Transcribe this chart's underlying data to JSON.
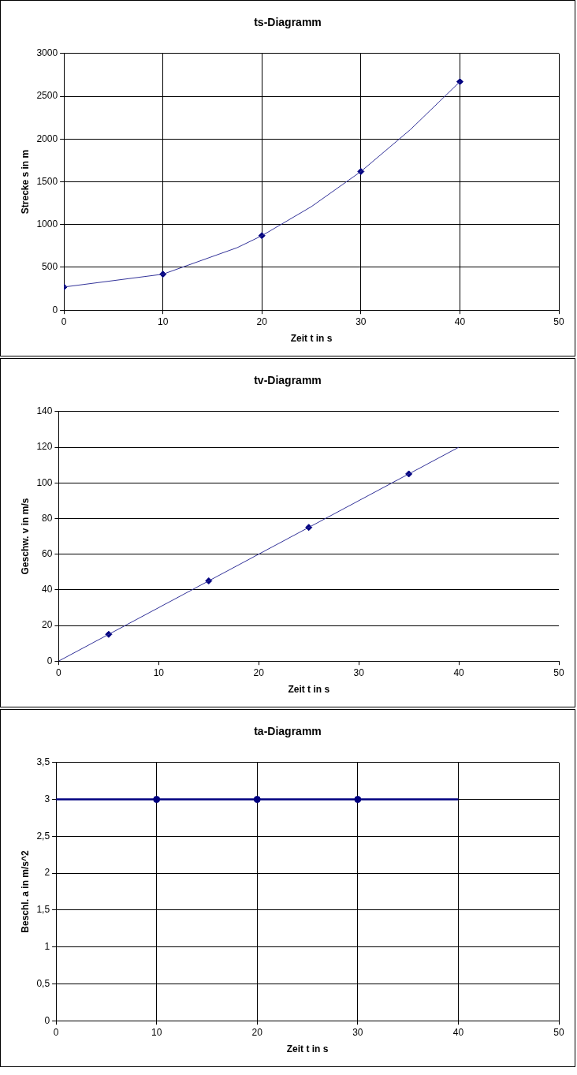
{
  "chart_data": [
    {
      "type": "line",
      "title": "ts-Diagramm",
      "xlabel": "Zeit t in s",
      "ylabel": "Strecke s in m",
      "xlim": [
        0,
        50
      ],
      "xticks": [
        0,
        10,
        20,
        30,
        40,
        50
      ],
      "ylim": [
        0,
        3000
      ],
      "yticks": [
        0,
        500,
        1000,
        1500,
        2000,
        2500,
        3000
      ],
      "grid": true,
      "legend": false,
      "series": [
        {
          "type": "line",
          "color": "#333399",
          "x": [
            0,
            10,
            17.5,
            20,
            25,
            30,
            35,
            40
          ],
          "values": [
            270,
            420,
            730,
            870,
            1210,
            1620,
            2110,
            2670
          ]
        },
        {
          "type": "scatter",
          "marker": "diamond",
          "color": "#000080",
          "x": [
            0,
            10,
            20,
            30,
            40
          ],
          "values": [
            270,
            420,
            870,
            1620,
            2670
          ]
        }
      ]
    },
    {
      "type": "line",
      "title": "tv-Diagramm",
      "xlabel": "Zeit t in s",
      "ylabel": "Geschw. v in m/s",
      "xlim": [
        0,
        50
      ],
      "xticks": [
        0,
        10,
        20,
        30,
        40,
        50
      ],
      "ylim": [
        0,
        140
      ],
      "yticks": [
        0,
        20,
        40,
        60,
        80,
        100,
        120,
        140
      ],
      "grid": "y",
      "legend": false,
      "series": [
        {
          "type": "line",
          "color": "#333399",
          "x": [
            0,
            40
          ],
          "values": [
            0,
            120
          ]
        },
        {
          "type": "scatter",
          "marker": "diamond",
          "color": "#000080",
          "x": [
            5,
            15,
            25,
            35
          ],
          "values": [
            15,
            45,
            75,
            105
          ]
        }
      ]
    },
    {
      "type": "line",
      "title": "ta-Diagramm",
      "xlabel": "Zeit t in s",
      "ylabel": "Beschl. a in m/s^2",
      "xlim": [
        0,
        50
      ],
      "xticks": [
        0,
        10,
        20,
        30,
        40,
        50
      ],
      "ylim": [
        0,
        3.5
      ],
      "yticks": [
        0,
        {
          "value": 0.5,
          "label": "0,5"
        },
        1,
        {
          "value": 1.5,
          "label": "1,5"
        },
        2,
        {
          "value": 2.5,
          "label": "2,5"
        },
        3,
        {
          "value": 3.5,
          "label": "3,5"
        }
      ],
      "grid": true,
      "legend": false,
      "series": [
        {
          "type": "line",
          "color": "#000080",
          "x": [
            0,
            40
          ],
          "values": [
            3,
            3
          ]
        },
        {
          "type": "scatter",
          "marker": "circle",
          "color": "#000080",
          "x": [
            10,
            20,
            30
          ],
          "values": [
            3,
            3,
            3
          ]
        }
      ]
    }
  ]
}
